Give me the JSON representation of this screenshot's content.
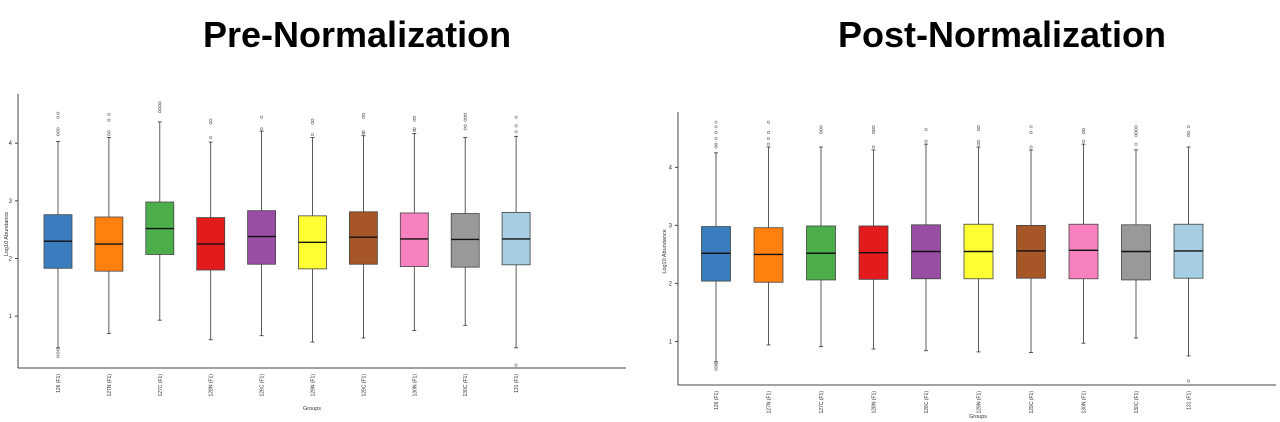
{
  "titles": {
    "left": "Pre-Normalization",
    "right": "Post-Normalization"
  },
  "colors": [
    "#3a7dbf",
    "#ff7f0f",
    "#4cae4b",
    "#e41b1c",
    "#984ea2",
    "#ffff33",
    "#a75627",
    "#f781bf",
    "#999999",
    "#a6cee3"
  ],
  "chart_data": [
    {
      "type": "box",
      "title": "Pre-Normalization",
      "xlabel": "Groups",
      "ylabel": "Log10 Abundance",
      "ylim": [
        0.1,
        4.75
      ],
      "yticks": [
        1,
        2,
        3,
        4
      ],
      "categories": [
        "126 (F1)",
        "127N (F1)",
        "127C (F1)",
        "128N (F1)",
        "128C (F1)",
        "129N (F1)",
        "129C (F1)",
        "130N (F1)",
        "130C (F1)",
        "131 (F1)"
      ],
      "boxes": [
        {
          "whisker_low": 0.45,
          "q1": 1.83,
          "median": 2.3,
          "q3": 2.76,
          "whisker_high": 4.03,
          "outliers": [
            0.3,
            0.36,
            0.42,
            4.15,
            4.2,
            4.25,
            4.45,
            4.52
          ]
        },
        {
          "whisker_low": 0.7,
          "q1": 1.78,
          "median": 2.25,
          "q3": 2.72,
          "whisker_high": 4.1,
          "outliers": [
            4.15,
            4.2,
            4.4,
            4.5
          ]
        },
        {
          "whisker_low": 0.93,
          "q1": 2.07,
          "median": 2.52,
          "q3": 2.98,
          "whisker_high": 4.37,
          "outliers": [
            4.55,
            4.6,
            4.65,
            4.7
          ]
        },
        {
          "whisker_low": 0.59,
          "q1": 1.8,
          "median": 2.25,
          "q3": 2.71,
          "whisker_high": 4.02,
          "outliers": [
            4.1,
            4.35,
            4.4
          ]
        },
        {
          "whisker_low": 0.66,
          "q1": 1.9,
          "median": 2.38,
          "q3": 2.83,
          "whisker_high": 4.21,
          "outliers": [
            4.25,
            4.45
          ]
        },
        {
          "whisker_low": 0.55,
          "q1": 1.82,
          "median": 2.28,
          "q3": 2.74,
          "whisker_high": 4.1,
          "outliers": [
            4.15,
            4.35,
            4.4
          ]
        },
        {
          "whisker_low": 0.62,
          "q1": 1.9,
          "median": 2.37,
          "q3": 2.81,
          "whisker_high": 4.13,
          "outliers": [
            4.17,
            4.2,
            4.45,
            4.5
          ]
        },
        {
          "whisker_low": 0.75,
          "q1": 1.86,
          "median": 2.34,
          "q3": 2.79,
          "whisker_high": 4.17,
          "outliers": [
            4.22,
            4.25,
            4.4,
            4.45
          ]
        },
        {
          "whisker_low": 0.84,
          "q1": 1.85,
          "median": 2.33,
          "q3": 2.78,
          "whisker_high": 4.1,
          "outliers": [
            4.25,
            4.3,
            4.4,
            4.45,
            4.5
          ]
        },
        {
          "whisker_low": 0.45,
          "q1": 1.89,
          "median": 2.34,
          "q3": 2.8,
          "whisker_high": 4.12,
          "outliers": [
            0.15,
            4.2,
            4.3,
            4.45
          ]
        }
      ]
    },
    {
      "type": "box",
      "title": "Post-Normalization",
      "xlabel": "Groups",
      "ylabel": "Log10 Abundance",
      "ylim": [
        0.25,
        4.85
      ],
      "yticks": [
        1,
        2,
        3,
        4
      ],
      "categories": [
        "126 (F1)",
        "127N (F1)",
        "127C (F1)",
        "128N (F1)",
        "128C (F1)",
        "129N (F1)",
        "129C (F1)",
        "130N (F1)",
        "130C (F1)",
        "131 (F1)"
      ],
      "boxes": [
        {
          "whisker_low": 0.65,
          "q1": 2.04,
          "median": 2.52,
          "q3": 2.98,
          "whisker_high": 4.25,
          "outliers": [
            0.52,
            0.56,
            0.6,
            0.63,
            4.35,
            4.4,
            4.5,
            4.6,
            4.7,
            4.78
          ]
        },
        {
          "whisker_low": 0.94,
          "q1": 2.02,
          "median": 2.5,
          "q3": 2.96,
          "whisker_high": 4.35,
          "outliers": [
            4.4,
            4.5,
            4.6,
            4.78
          ]
        },
        {
          "whisker_low": 0.91,
          "q1": 2.06,
          "median": 2.52,
          "q3": 2.99,
          "whisker_high": 4.35,
          "outliers": [
            4.6,
            4.65,
            4.7
          ]
        },
        {
          "whisker_low": 0.87,
          "q1": 2.07,
          "median": 2.53,
          "q3": 2.99,
          "whisker_high": 4.3,
          "outliers": [
            4.35,
            4.6,
            4.65,
            4.7
          ]
        },
        {
          "whisker_low": 0.84,
          "q1": 2.08,
          "median": 2.55,
          "q3": 3.01,
          "whisker_high": 4.4,
          "outliers": [
            4.45,
            4.65
          ]
        },
        {
          "whisker_low": 0.82,
          "q1": 2.08,
          "median": 2.55,
          "q3": 3.02,
          "whisker_high": 4.35,
          "outliers": [
            4.4,
            4.45,
            4.65,
            4.7
          ]
        },
        {
          "whisker_low": 0.81,
          "q1": 2.09,
          "median": 2.56,
          "q3": 3.0,
          "whisker_high": 4.3,
          "outliers": [
            4.35,
            4.6,
            4.7
          ]
        },
        {
          "whisker_low": 0.97,
          "q1": 2.08,
          "median": 2.57,
          "q3": 3.02,
          "whisker_high": 4.4,
          "outliers": [
            4.45,
            4.6,
            4.65
          ]
        },
        {
          "whisker_low": 1.06,
          "q1": 2.06,
          "median": 2.55,
          "q3": 3.01,
          "whisker_high": 4.3,
          "outliers": [
            4.4,
            4.55,
            4.6,
            4.65,
            4.7
          ]
        },
        {
          "whisker_low": 0.75,
          "q1": 2.09,
          "median": 2.56,
          "q3": 3.02,
          "whisker_high": 4.35,
          "outliers": [
            0.32,
            4.55,
            4.6,
            4.7
          ]
        }
      ]
    }
  ]
}
